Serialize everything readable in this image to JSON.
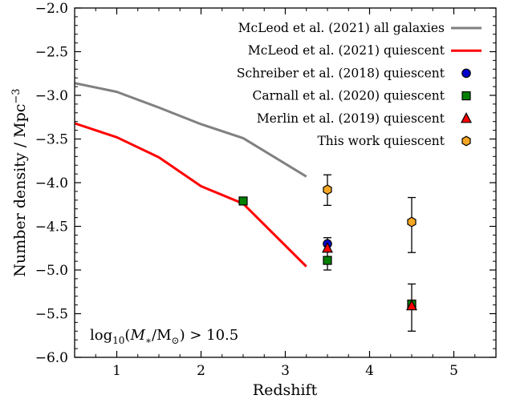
{
  "chart_data": {
    "type": "line",
    "xlabel": "Redshift",
    "ylabel": "Number density / Mpc",
    "ylabel_sup": "−3",
    "xlim": [
      0.5,
      5.5
    ],
    "ylim": [
      -6.0,
      -2.0
    ],
    "xticks": [
      1,
      2,
      3,
      4,
      5
    ],
    "xtick_labels": [
      "1",
      "2",
      "3",
      "4",
      "5"
    ],
    "yticks": [
      -6.0,
      -5.5,
      -5.0,
      -4.5,
      -4.0,
      -3.5,
      -3.0,
      -2.5,
      -2.0
    ],
    "ytick_labels": [
      "−6.0",
      "−5.5",
      "−5.0",
      "−4.5",
      "−4.0",
      "−3.5",
      "−3.0",
      "−2.5",
      "−2.0"
    ],
    "grid": false,
    "legend_placement": "top-right",
    "annotation": {
      "prefix": "log",
      "sub": "10",
      "open": "(",
      "m1": "M",
      "m1_sub": "∗",
      "slash": "/M",
      "sun": "⊙",
      "close": ") > 10.5"
    },
    "series": [
      {
        "name": "McLeod et al. (2021) all galaxies",
        "kind": "line",
        "color": "#808080",
        "x": [
          0.5,
          1.0,
          1.5,
          2.0,
          2.5,
          3.25
        ],
        "y": [
          -2.86,
          -2.96,
          -3.14,
          -3.33,
          -3.49,
          -3.93
        ]
      },
      {
        "name": "McLeod et al. (2021) quiescent",
        "kind": "line",
        "color": "#ff0000",
        "x": [
          0.5,
          1.0,
          1.5,
          2.0,
          2.5,
          3.25
        ],
        "y": [
          -3.32,
          -3.48,
          -3.71,
          -4.04,
          -4.24,
          -4.96
        ]
      },
      {
        "name": "Schreiber et al. (2018) quiescent",
        "kind": "points",
        "marker": "circle",
        "color": "#0000cc",
        "points": [
          {
            "x": 3.5,
            "y": -4.7,
            "yerr_low": 0.07,
            "yerr_high": 0.07
          }
        ]
      },
      {
        "name": "Carnall et al. (2020) quiescent",
        "kind": "points",
        "marker": "square",
        "color": "#008000",
        "points": [
          {
            "x": 2.5,
            "y": -4.21
          },
          {
            "x": 3.5,
            "y": -4.89,
            "yerr_low": 0.11,
            "yerr_high": 0.11
          },
          {
            "x": 4.5,
            "y": -5.39,
            "yerr_low": 0.31,
            "yerr_high": 0.23
          }
        ]
      },
      {
        "name": "Merlin et al. (2019) quiescent",
        "kind": "points",
        "marker": "triangle",
        "color": "#ff0000",
        "points": [
          {
            "x": 3.5,
            "y": -4.75
          },
          {
            "x": 4.5,
            "y": -5.41
          }
        ]
      },
      {
        "name": "This work quiescent",
        "kind": "points",
        "marker": "hexagon",
        "color": "#f5a623",
        "points": [
          {
            "x": 3.5,
            "y": -4.08,
            "yerr_low": 0.18,
            "yerr_high": 0.17
          },
          {
            "x": 4.5,
            "y": -4.45,
            "yerr_low": 0.35,
            "yerr_high": 0.28
          }
        ]
      }
    ]
  }
}
